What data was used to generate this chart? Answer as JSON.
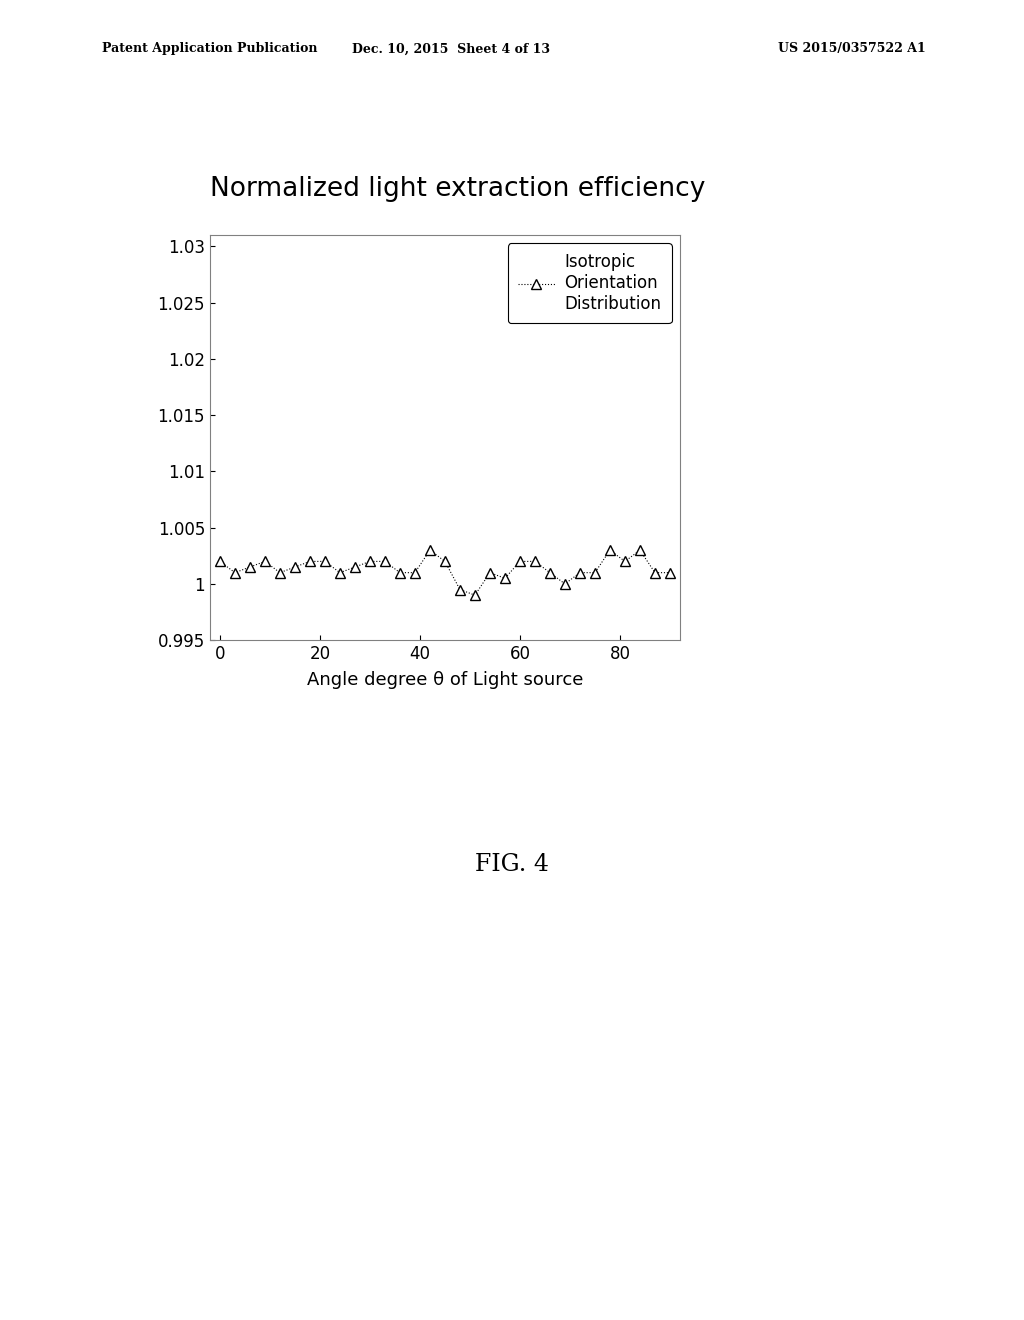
{
  "title": "Normalized light extraction efficiency",
  "xlabel": "Angle degree θ of Light source",
  "ylabel": "",
  "xlim": [
    -2,
    92
  ],
  "ylim": [
    0.995,
    1.031
  ],
  "yticks": [
    0.995,
    1.0,
    1.005,
    1.01,
    1.015,
    1.02,
    1.025,
    1.03
  ],
  "ytick_labels": [
    "0.995",
    "1",
    "1.005",
    "1.01",
    "1.015",
    "1.02",
    "1.025",
    "1.03"
  ],
  "xticks": [
    0,
    20,
    40,
    60,
    80
  ],
  "x": [
    0,
    3,
    6,
    9,
    12,
    15,
    18,
    21,
    24,
    27,
    30,
    33,
    36,
    39,
    42,
    45,
    48,
    51,
    54,
    57,
    60,
    63,
    66,
    69,
    72,
    75,
    78,
    81,
    84,
    87,
    90
  ],
  "y": [
    1.002,
    1.001,
    1.0015,
    1.002,
    1.001,
    1.0015,
    1.002,
    1.002,
    1.001,
    1.0015,
    1.002,
    1.002,
    1.001,
    1.001,
    1.003,
    1.002,
    0.9995,
    0.999,
    1.001,
    1.0005,
    1.002,
    1.002,
    1.001,
    1.0,
    1.001,
    1.001,
    1.003,
    1.002,
    1.003,
    1.001,
    1.001
  ],
  "legend_label": "Isotropic\nOrientation\nDistribution",
  "line_color": "#000000",
  "line_style": "dotted",
  "marker": "^",
  "marker_size": 7,
  "marker_facecolor": "white",
  "marker_edgecolor": "#000000",
  "background_color": "#ffffff",
  "title_fontsize": 19,
  "axis_fontsize": 13,
  "tick_fontsize": 12,
  "legend_fontsize": 12,
  "header_left": "Patent Application Publication",
  "header_mid": "Dec. 10, 2015  Sheet 4 of 13",
  "header_right": "US 2015/0357522 A1",
  "fig_label": "FIG. 4"
}
